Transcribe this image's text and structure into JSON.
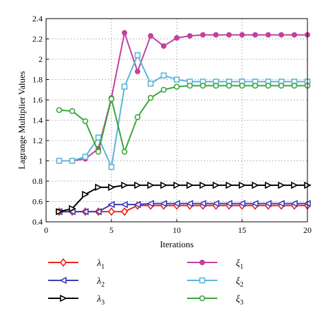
{
  "chart_data": {
    "type": "line",
    "xlabel": "Iterations",
    "ylabel": "Lagrange Multiplier Values",
    "xlim": [
      0,
      20
    ],
    "ylim": [
      0.4,
      2.4
    ],
    "xticks": [
      0,
      5,
      10,
      15,
      20
    ],
    "yticks": [
      0.4,
      0.6,
      0.8,
      1,
      1.2,
      1.4,
      1.6,
      1.8,
      2,
      2.2,
      2.4
    ],
    "xtick_labels": [
      "0",
      "5",
      "10",
      "15",
      "20"
    ],
    "ytick_labels": [
      "0.4",
      "0.6",
      "0.8",
      "1",
      "1.2",
      "1.4",
      "1.6",
      "1.8",
      "2",
      "2.2",
      "2.4"
    ],
    "grid": true,
    "legend_position": "bottom",
    "x": [
      1,
      2,
      3,
      4,
      5,
      6,
      7,
      8,
      9,
      10,
      11,
      12,
      13,
      14,
      15,
      16,
      17,
      18,
      19,
      20
    ],
    "series": [
      {
        "name": "λ",
        "subscript": "1",
        "color": "#e8221b",
        "marker": "diamond",
        "values": [
          0.5,
          0.5,
          0.5,
          0.5,
          0.5,
          0.5,
          0.56,
          0.56,
          0.56,
          0.56,
          0.56,
          0.56,
          0.56,
          0.56,
          0.56,
          0.56,
          0.56,
          0.56,
          0.56,
          0.56
        ]
      },
      {
        "name": "λ",
        "subscript": "2",
        "color": "#3b3bb5",
        "marker": "triangle-left",
        "values": [
          0.5,
          0.5,
          0.5,
          0.5,
          0.57,
          0.57,
          0.57,
          0.58,
          0.58,
          0.58,
          0.58,
          0.58,
          0.58,
          0.58,
          0.58,
          0.58,
          0.58,
          0.58,
          0.58,
          0.58
        ]
      },
      {
        "name": "λ",
        "subscript": "3",
        "color": "#000000",
        "marker": "triangle-right",
        "values": [
          0.5,
          0.53,
          0.67,
          0.74,
          0.74,
          0.76,
          0.76,
          0.76,
          0.76,
          0.76,
          0.76,
          0.76,
          0.76,
          0.76,
          0.76,
          0.76,
          0.76,
          0.76,
          0.76,
          0.76
        ]
      },
      {
        "name": "ξ",
        "subscript": "1",
        "color": "#c2409e",
        "marker": "circle-filled",
        "values": [
          1.0,
          1.0,
          1.02,
          1.12,
          1.62,
          2.26,
          1.88,
          2.23,
          2.13,
          2.21,
          2.23,
          2.24,
          2.24,
          2.24,
          2.24,
          2.24,
          2.24,
          2.24,
          2.24,
          2.24
        ]
      },
      {
        "name": "ξ",
        "subscript": "2",
        "color": "#5ab4d8",
        "marker": "square",
        "values": [
          1.0,
          1.0,
          1.04,
          1.23,
          0.94,
          1.73,
          2.04,
          1.76,
          1.84,
          1.8,
          1.78,
          1.78,
          1.78,
          1.78,
          1.78,
          1.78,
          1.78,
          1.78,
          1.78,
          1.78
        ]
      },
      {
        "name": "ξ",
        "subscript": "3",
        "color": "#3aa63a",
        "marker": "circle-open",
        "values": [
          1.5,
          1.49,
          1.39,
          1.09,
          1.61,
          1.09,
          1.43,
          1.62,
          1.7,
          1.73,
          1.74,
          1.74,
          1.74,
          1.74,
          1.74,
          1.74,
          1.74,
          1.74,
          1.74,
          1.74
        ]
      }
    ]
  }
}
